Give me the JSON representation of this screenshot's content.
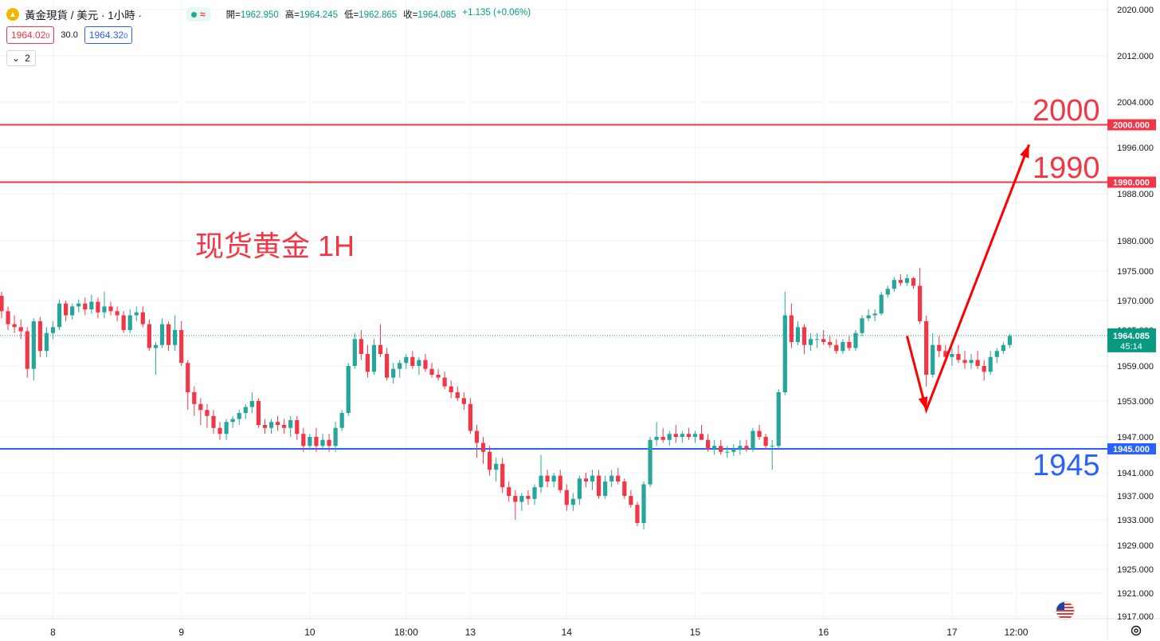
{
  "header": {
    "symbol_title": "黃金現貨 / 美元 · 1小時 ·",
    "status_symbol": "≈",
    "ohlc": [
      {
        "label": "開=",
        "value": "1962.950"
      },
      {
        "label": "高=",
        "value": "1964.245"
      },
      {
        "label": "低=",
        "value": "1962.865"
      },
      {
        "label": "收=",
        "value": "1964.085"
      },
      {
        "label": "",
        "value": "+1.135 (+0.06%)"
      }
    ],
    "sell_price": "1964.02",
    "sell_price_small": "0",
    "spread": "30.0",
    "buy_price": "1964.32",
    "buy_price_small": "0",
    "indicators_count": "2"
  },
  "colors": {
    "up": "#26a69a",
    "down": "#f23645",
    "resistance": "#f23645",
    "support": "#2962ff",
    "arrow": "#ff0000",
    "current_price_bg": "#089981"
  },
  "annotations": {
    "chart_title": "现货黄金 1H",
    "level_2000": "2000",
    "level_1990": "1990",
    "level_1945": "1945"
  },
  "chart_data": {
    "type": "candlestick",
    "title": "现货黄金 1H",
    "ylim": [
      1915,
      2022
    ],
    "y_ticks": [
      "2020.000",
      "2012.000",
      "2004.000",
      "1996.000",
      "1988.000",
      "1980.000",
      "1975.000",
      "1970.000",
      "1965.000",
      "1959.000",
      "1953.000",
      "1947.000",
      "1941.000",
      "1937.000",
      "1933.000",
      "1929.000",
      "1925.000",
      "1921.000",
      "1917.000"
    ],
    "x_ticks": [
      {
        "label": "8",
        "bar": 8
      },
      {
        "label": "9",
        "bar": 28
      },
      {
        "label": "10",
        "bar": 48
      },
      {
        "label": "18:00",
        "bar": 63
      },
      {
        "label": "13",
        "bar": 73
      },
      {
        "label": "14",
        "bar": 88
      },
      {
        "label": "15",
        "bar": 108
      },
      {
        "label": "16",
        "bar": 128
      },
      {
        "label": "17",
        "bar": 148
      },
      {
        "label": "12:00",
        "bar": 158
      }
    ],
    "horizontal_levels": [
      {
        "price": 2000.0,
        "label": "2000.000",
        "kind": "resistance"
      },
      {
        "price": 1990.0,
        "label": "1990.000",
        "kind": "resistance"
      },
      {
        "price": 1945.0,
        "label": "1945.000",
        "kind": "support"
      }
    ],
    "current_price": {
      "value": 1964.085,
      "label": "1964.085",
      "countdown": "45:14"
    },
    "projection_path": [
      {
        "bar": 141,
        "price": 1964.0
      },
      {
        "bar": 144,
        "price": 1951.5
      },
      {
        "bar": 160,
        "price": 1996.5
      }
    ],
    "candles": [
      {
        "o": 1970.8,
        "h": 1971.5,
        "l": 1967.0,
        "c": 1968.2
      },
      {
        "o": 1968.2,
        "h": 1969.0,
        "l": 1965.0,
        "c": 1966.0
      },
      {
        "o": 1966.0,
        "h": 1967.5,
        "l": 1964.5,
        "c": 1965.5
      },
      {
        "o": 1965.5,
        "h": 1966.8,
        "l": 1963.5,
        "c": 1964.8
      },
      {
        "o": 1964.8,
        "h": 1965.5,
        "l": 1957.0,
        "c": 1958.5
      },
      {
        "o": 1958.5,
        "h": 1967.0,
        "l": 1956.5,
        "c": 1966.5
      },
      {
        "o": 1966.5,
        "h": 1967.2,
        "l": 1960.5,
        "c": 1961.5
      },
      {
        "o": 1961.5,
        "h": 1965.5,
        "l": 1960.5,
        "c": 1964.5
      },
      {
        "o": 1964.5,
        "h": 1966.5,
        "l": 1963.5,
        "c": 1965.5
      },
      {
        "o": 1965.5,
        "h": 1970.2,
        "l": 1965.0,
        "c": 1969.5
      },
      {
        "o": 1969.5,
        "h": 1970.0,
        "l": 1966.5,
        "c": 1967.5
      },
      {
        "o": 1967.5,
        "h": 1969.5,
        "l": 1966.8,
        "c": 1969.0
      },
      {
        "o": 1969.0,
        "h": 1970.2,
        "l": 1968.0,
        "c": 1969.5
      },
      {
        "o": 1969.5,
        "h": 1970.5,
        "l": 1967.5,
        "c": 1968.5
      },
      {
        "o": 1968.5,
        "h": 1971.0,
        "l": 1967.8,
        "c": 1969.8
      },
      {
        "o": 1969.8,
        "h": 1970.5,
        "l": 1967.0,
        "c": 1968.0
      },
      {
        "o": 1968.0,
        "h": 1971.5,
        "l": 1967.0,
        "c": 1969.0
      },
      {
        "o": 1969.0,
        "h": 1969.8,
        "l": 1967.5,
        "c": 1968.2
      },
      {
        "o": 1968.2,
        "h": 1969.0,
        "l": 1966.5,
        "c": 1967.5
      },
      {
        "o": 1967.5,
        "h": 1968.2,
        "l": 1964.5,
        "c": 1965.0
      },
      {
        "o": 1965.0,
        "h": 1968.5,
        "l": 1964.5,
        "c": 1967.5
      },
      {
        "o": 1967.5,
        "h": 1969.0,
        "l": 1966.5,
        "c": 1968.0
      },
      {
        "o": 1968.0,
        "h": 1969.0,
        "l": 1965.5,
        "c": 1966.0
      },
      {
        "o": 1966.0,
        "h": 1966.8,
        "l": 1961.5,
        "c": 1962.0
      },
      {
        "o": 1962.0,
        "h": 1963.0,
        "l": 1957.5,
        "c": 1962.5
      },
      {
        "o": 1962.5,
        "h": 1967.0,
        "l": 1962.0,
        "c": 1966.0
      },
      {
        "o": 1966.0,
        "h": 1966.5,
        "l": 1961.5,
        "c": 1962.5
      },
      {
        "o": 1962.5,
        "h": 1967.5,
        "l": 1961.5,
        "c": 1965.0
      },
      {
        "o": 1965.0,
        "h": 1966.5,
        "l": 1959.0,
        "c": 1959.5
      },
      {
        "o": 1959.5,
        "h": 1960.0,
        "l": 1951.5,
        "c": 1954.5
      },
      {
        "o": 1954.5,
        "h": 1955.5,
        "l": 1950.5,
        "c": 1952.5
      },
      {
        "o": 1952.5,
        "h": 1953.5,
        "l": 1949.0,
        "c": 1951.5
      },
      {
        "o": 1951.5,
        "h": 1952.5,
        "l": 1948.5,
        "c": 1950.5
      },
      {
        "o": 1950.5,
        "h": 1951.5,
        "l": 1947.5,
        "c": 1948.5
      },
      {
        "o": 1948.5,
        "h": 1949.5,
        "l": 1946.5,
        "c": 1947.5
      },
      {
        "o": 1947.5,
        "h": 1950.0,
        "l": 1946.5,
        "c": 1949.5
      },
      {
        "o": 1949.5,
        "h": 1950.5,
        "l": 1948.5,
        "c": 1950.0
      },
      {
        "o": 1950.0,
        "h": 1951.5,
        "l": 1949.0,
        "c": 1951.0
      },
      {
        "o": 1951.0,
        "h": 1952.5,
        "l": 1950.0,
        "c": 1952.0
      },
      {
        "o": 1952.0,
        "h": 1954.5,
        "l": 1951.0,
        "c": 1953.0
      },
      {
        "o": 1953.0,
        "h": 1953.5,
        "l": 1948.5,
        "c": 1949.0
      },
      {
        "o": 1949.0,
        "h": 1950.0,
        "l": 1947.5,
        "c": 1948.5
      },
      {
        "o": 1948.5,
        "h": 1950.0,
        "l": 1947.5,
        "c": 1949.5
      },
      {
        "o": 1949.5,
        "h": 1950.5,
        "l": 1948.0,
        "c": 1949.0
      },
      {
        "o": 1949.0,
        "h": 1950.0,
        "l": 1947.5,
        "c": 1948.5
      },
      {
        "o": 1948.5,
        "h": 1950.5,
        "l": 1947.0,
        "c": 1949.8
      },
      {
        "o": 1949.8,
        "h": 1950.5,
        "l": 1946.5,
        "c": 1947.5
      },
      {
        "o": 1947.5,
        "h": 1948.5,
        "l": 1944.5,
        "c": 1945.5
      },
      {
        "o": 1945.5,
        "h": 1947.5,
        "l": 1945.0,
        "c": 1947.0
      },
      {
        "o": 1947.0,
        "h": 1948.5,
        "l": 1944.5,
        "c": 1945.5
      },
      {
        "o": 1945.5,
        "h": 1947.5,
        "l": 1944.8,
        "c": 1946.5
      },
      {
        "o": 1946.5,
        "h": 1947.5,
        "l": 1944.5,
        "c": 1945.5
      },
      {
        "o": 1945.5,
        "h": 1949.5,
        "l": 1944.5,
        "c": 1948.5
      },
      {
        "o": 1948.5,
        "h": 1951.5,
        "l": 1948.0,
        "c": 1951.0
      },
      {
        "o": 1951.0,
        "h": 1959.5,
        "l": 1950.5,
        "c": 1959.0
      },
      {
        "o": 1959.0,
        "h": 1964.5,
        "l": 1958.5,
        "c": 1963.5
      },
      {
        "o": 1963.5,
        "h": 1965.0,
        "l": 1960.0,
        "c": 1961.0
      },
      {
        "o": 1961.0,
        "h": 1962.5,
        "l": 1957.0,
        "c": 1958.0
      },
      {
        "o": 1958.0,
        "h": 1963.5,
        "l": 1957.5,
        "c": 1962.5
      },
      {
        "o": 1962.5,
        "h": 1966.0,
        "l": 1960.5,
        "c": 1961.0
      },
      {
        "o": 1961.0,
        "h": 1962.0,
        "l": 1956.5,
        "c": 1957.0
      },
      {
        "o": 1957.0,
        "h": 1959.5,
        "l": 1956.0,
        "c": 1958.5
      },
      {
        "o": 1958.5,
        "h": 1960.0,
        "l": 1957.0,
        "c": 1959.5
      },
      {
        "o": 1959.5,
        "h": 1961.0,
        "l": 1958.5,
        "c": 1960.5
      },
      {
        "o": 1960.5,
        "h": 1961.5,
        "l": 1958.5,
        "c": 1959.0
      },
      {
        "o": 1959.0,
        "h": 1960.5,
        "l": 1957.5,
        "c": 1960.0
      },
      {
        "o": 1960.0,
        "h": 1961.0,
        "l": 1958.0,
        "c": 1958.5
      },
      {
        "o": 1958.5,
        "h": 1959.5,
        "l": 1957.0,
        "c": 1957.5
      },
      {
        "o": 1957.5,
        "h": 1958.5,
        "l": 1956.5,
        "c": 1957.0
      },
      {
        "o": 1957.0,
        "h": 1958.0,
        "l": 1955.0,
        "c": 1955.5
      },
      {
        "o": 1955.5,
        "h": 1956.5,
        "l": 1953.5,
        "c": 1954.5
      },
      {
        "o": 1954.5,
        "h": 1955.5,
        "l": 1953.0,
        "c": 1953.5
      },
      {
        "o": 1953.5,
        "h": 1954.5,
        "l": 1951.5,
        "c": 1952.5
      },
      {
        "o": 1952.5,
        "h": 1953.5,
        "l": 1947.5,
        "c": 1948.0
      },
      {
        "o": 1948.0,
        "h": 1949.0,
        "l": 1943.5,
        "c": 1946.0
      },
      {
        "o": 1946.0,
        "h": 1947.0,
        "l": 1942.5,
        "c": 1944.5
      },
      {
        "o": 1944.5,
        "h": 1945.5,
        "l": 1940.5,
        "c": 1941.5
      },
      {
        "o": 1941.5,
        "h": 1943.5,
        "l": 1939.5,
        "c": 1942.5
      },
      {
        "o": 1942.5,
        "h": 1943.5,
        "l": 1937.5,
        "c": 1938.5
      },
      {
        "o": 1938.5,
        "h": 1939.5,
        "l": 1936.0,
        "c": 1937.0
      },
      {
        "o": 1937.0,
        "h": 1938.0,
        "l": 1933.0,
        "c": 1936.0
      },
      {
        "o": 1936.0,
        "h": 1937.5,
        "l": 1934.5,
        "c": 1937.0
      },
      {
        "o": 1937.0,
        "h": 1938.0,
        "l": 1935.5,
        "c": 1936.5
      },
      {
        "o": 1936.5,
        "h": 1939.0,
        "l": 1935.5,
        "c": 1938.5
      },
      {
        "o": 1938.5,
        "h": 1944.0,
        "l": 1937.5,
        "c": 1940.5
      },
      {
        "o": 1940.5,
        "h": 1941.5,
        "l": 1938.5,
        "c": 1939.5
      },
      {
        "o": 1939.5,
        "h": 1941.0,
        "l": 1938.5,
        "c": 1940.5
      },
      {
        "o": 1940.5,
        "h": 1941.5,
        "l": 1937.5,
        "c": 1938.0
      },
      {
        "o": 1938.0,
        "h": 1939.0,
        "l": 1934.5,
        "c": 1935.5
      },
      {
        "o": 1935.5,
        "h": 1937.5,
        "l": 1934.5,
        "c": 1936.5
      },
      {
        "o": 1936.5,
        "h": 1940.5,
        "l": 1935.5,
        "c": 1940.0
      },
      {
        "o": 1940.0,
        "h": 1941.0,
        "l": 1938.5,
        "c": 1939.5
      },
      {
        "o": 1939.5,
        "h": 1941.5,
        "l": 1938.0,
        "c": 1940.5
      },
      {
        "o": 1940.5,
        "h": 1941.5,
        "l": 1936.5,
        "c": 1937.0
      },
      {
        "o": 1937.0,
        "h": 1940.5,
        "l": 1936.5,
        "c": 1939.5
      },
      {
        "o": 1939.5,
        "h": 1941.5,
        "l": 1938.5,
        "c": 1940.5
      },
      {
        "o": 1940.5,
        "h": 1941.8,
        "l": 1939.0,
        "c": 1939.5
      },
      {
        "o": 1939.5,
        "h": 1940.0,
        "l": 1936.5,
        "c": 1937.0
      },
      {
        "o": 1937.0,
        "h": 1938.0,
        "l": 1935.0,
        "c": 1935.5
      },
      {
        "o": 1935.5,
        "h": 1936.0,
        "l": 1932.0,
        "c": 1932.5
      },
      {
        "o": 1932.5,
        "h": 1939.5,
        "l": 1931.5,
        "c": 1939.0
      },
      {
        "o": 1939.0,
        "h": 1947.0,
        "l": 1938.5,
        "c": 1946.5
      },
      {
        "o": 1946.5,
        "h": 1949.5,
        "l": 1945.5,
        "c": 1947.0
      },
      {
        "o": 1947.0,
        "h": 1948.5,
        "l": 1946.0,
        "c": 1946.5
      },
      {
        "o": 1946.5,
        "h": 1948.0,
        "l": 1945.5,
        "c": 1947.5
      },
      {
        "o": 1947.5,
        "h": 1949.0,
        "l": 1946.0,
        "c": 1947.0
      },
      {
        "o": 1947.0,
        "h": 1948.0,
        "l": 1946.0,
        "c": 1947.5
      },
      {
        "o": 1947.5,
        "h": 1948.5,
        "l": 1946.5,
        "c": 1947.0
      },
      {
        "o": 1947.0,
        "h": 1948.0,
        "l": 1946.0,
        "c": 1947.5
      },
      {
        "o": 1947.5,
        "h": 1949.0,
        "l": 1946.5,
        "c": 1946.5
      },
      {
        "o": 1946.5,
        "h": 1947.5,
        "l": 1944.5,
        "c": 1945.0
      },
      {
        "o": 1945.0,
        "h": 1946.5,
        "l": 1944.0,
        "c": 1945.5
      },
      {
        "o": 1945.5,
        "h": 1946.5,
        "l": 1944.0,
        "c": 1944.5
      },
      {
        "o": 1944.5,
        "h": 1945.5,
        "l": 1943.5,
        "c": 1944.5
      },
      {
        "o": 1944.5,
        "h": 1945.8,
        "l": 1943.8,
        "c": 1945.0
      },
      {
        "o": 1945.0,
        "h": 1946.5,
        "l": 1944.0,
        "c": 1945.5
      },
      {
        "o": 1945.5,
        "h": 1946.5,
        "l": 1944.5,
        "c": 1945.0
      },
      {
        "o": 1945.0,
        "h": 1948.5,
        "l": 1944.5,
        "c": 1948.0
      },
      {
        "o": 1948.0,
        "h": 1949.0,
        "l": 1946.5,
        "c": 1947.0
      },
      {
        "o": 1947.0,
        "h": 1947.5,
        "l": 1945.0,
        "c": 1945.5
      },
      {
        "o": 1945.5,
        "h": 1946.5,
        "l": 1941.5,
        "c": 1945.5
      },
      {
        "o": 1945.5,
        "h": 1955.0,
        "l": 1945.0,
        "c": 1954.5
      },
      {
        "o": 1954.5,
        "h": 1971.5,
        "l": 1954.0,
        "c": 1967.5
      },
      {
        "o": 1967.5,
        "h": 1969.5,
        "l": 1962.0,
        "c": 1963.0
      },
      {
        "o": 1963.0,
        "h": 1966.5,
        "l": 1962.5,
        "c": 1965.5
      },
      {
        "o": 1965.5,
        "h": 1966.0,
        "l": 1961.0,
        "c": 1962.5
      },
      {
        "o": 1962.5,
        "h": 1964.5,
        "l": 1961.5,
        "c": 1963.5
      },
      {
        "o": 1963.5,
        "h": 1964.5,
        "l": 1962.0,
        "c": 1963.5
      },
      {
        "o": 1963.5,
        "h": 1965.0,
        "l": 1962.5,
        "c": 1963.0
      },
      {
        "o": 1963.0,
        "h": 1964.0,
        "l": 1962.0,
        "c": 1962.5
      },
      {
        "o": 1962.5,
        "h": 1963.5,
        "l": 1961.0,
        "c": 1961.5
      },
      {
        "o": 1961.5,
        "h": 1963.5,
        "l": 1961.0,
        "c": 1963.0
      },
      {
        "o": 1963.0,
        "h": 1964.0,
        "l": 1961.5,
        "c": 1962.0
      },
      {
        "o": 1962.0,
        "h": 1965.0,
        "l": 1961.5,
        "c": 1964.5
      },
      {
        "o": 1964.5,
        "h": 1967.5,
        "l": 1964.0,
        "c": 1967.0
      },
      {
        "o": 1967.0,
        "h": 1968.5,
        "l": 1966.5,
        "c": 1967.5
      },
      {
        "o": 1967.5,
        "h": 1968.5,
        "l": 1966.5,
        "c": 1967.8
      },
      {
        "o": 1967.8,
        "h": 1971.5,
        "l": 1967.5,
        "c": 1971.0
      },
      {
        "o": 1971.0,
        "h": 1972.5,
        "l": 1970.5,
        "c": 1972.0
      },
      {
        "o": 1972.0,
        "h": 1974.0,
        "l": 1971.5,
        "c": 1973.5
      },
      {
        "o": 1973.5,
        "h": 1974.5,
        "l": 1972.5,
        "c": 1973.0
      },
      {
        "o": 1973.0,
        "h": 1974.5,
        "l": 1972.5,
        "c": 1973.8
      },
      {
        "o": 1973.8,
        "h": 1974.0,
        "l": 1972.0,
        "c": 1972.5
      },
      {
        "o": 1972.5,
        "h": 1975.5,
        "l": 1966.0,
        "c": 1966.5
      },
      {
        "o": 1966.5,
        "h": 1967.5,
        "l": 1955.5,
        "c": 1957.5
      },
      {
        "o": 1957.5,
        "h": 1964.5,
        "l": 1957.0,
        "c": 1962.5
      },
      {
        "o": 1962.5,
        "h": 1964.0,
        "l": 1960.5,
        "c": 1961.5
      },
      {
        "o": 1961.5,
        "h": 1962.5,
        "l": 1959.5,
        "c": 1960.5
      },
      {
        "o": 1960.5,
        "h": 1962.0,
        "l": 1959.0,
        "c": 1961.0
      },
      {
        "o": 1961.0,
        "h": 1962.5,
        "l": 1959.5,
        "c": 1960.0
      },
      {
        "o": 1960.0,
        "h": 1961.5,
        "l": 1958.5,
        "c": 1959.5
      },
      {
        "o": 1959.5,
        "h": 1961.0,
        "l": 1958.5,
        "c": 1960.0
      },
      {
        "o": 1960.0,
        "h": 1961.5,
        "l": 1958.5,
        "c": 1959.0
      },
      {
        "o": 1959.0,
        "h": 1960.0,
        "l": 1956.5,
        "c": 1958.0
      },
      {
        "o": 1958.0,
        "h": 1961.5,
        "l": 1957.5,
        "c": 1960.5
      },
      {
        "o": 1960.5,
        "h": 1962.0,
        "l": 1959.5,
        "c": 1961.5
      },
      {
        "o": 1961.5,
        "h": 1963.0,
        "l": 1961.0,
        "c": 1962.5
      },
      {
        "o": 1962.5,
        "h": 1964.3,
        "l": 1962.0,
        "c": 1964.0
      }
    ]
  }
}
